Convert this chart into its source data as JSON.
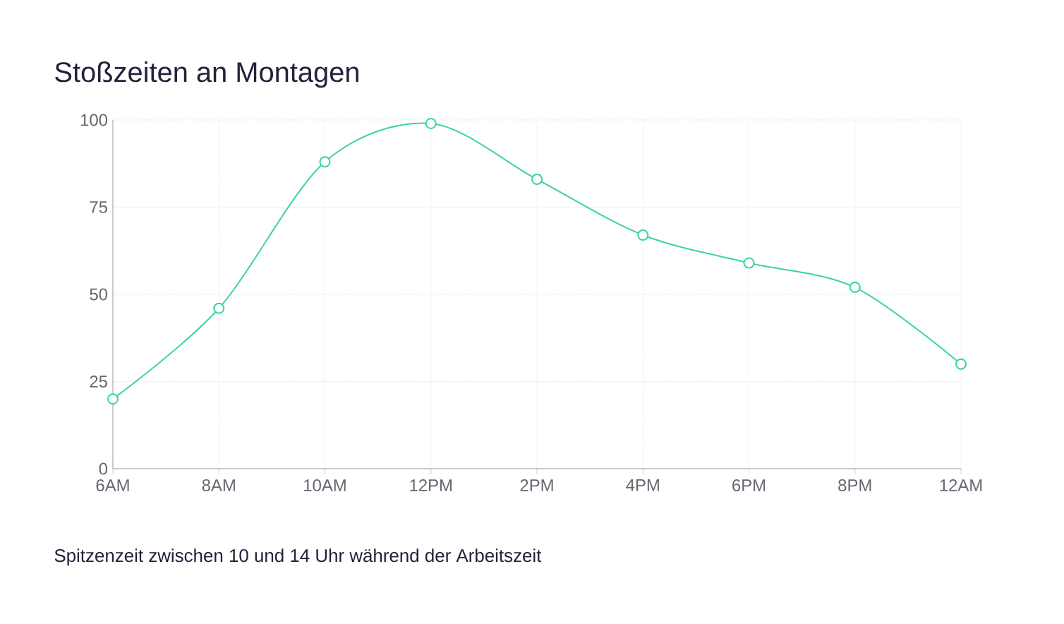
{
  "chart_data": {
    "type": "line",
    "title": "Stoßzeiten an Montagen",
    "annotations": [
      "Spitzenzeit zwischen 10 und 14 Uhr während der Arbeitszeit"
    ],
    "categories": [
      "6AM",
      "8AM",
      "10AM",
      "12PM",
      "2PM",
      "4PM",
      "6PM",
      "8PM",
      "12AM"
    ],
    "values": [
      20,
      46,
      88,
      99,
      83,
      67,
      59,
      52,
      30
    ],
    "color": "#3ad3a4",
    "marker": "circle",
    "ylim": [
      0,
      100
    ],
    "yticks": [
      0,
      25,
      50,
      75,
      100
    ],
    "grid": true
  }
}
